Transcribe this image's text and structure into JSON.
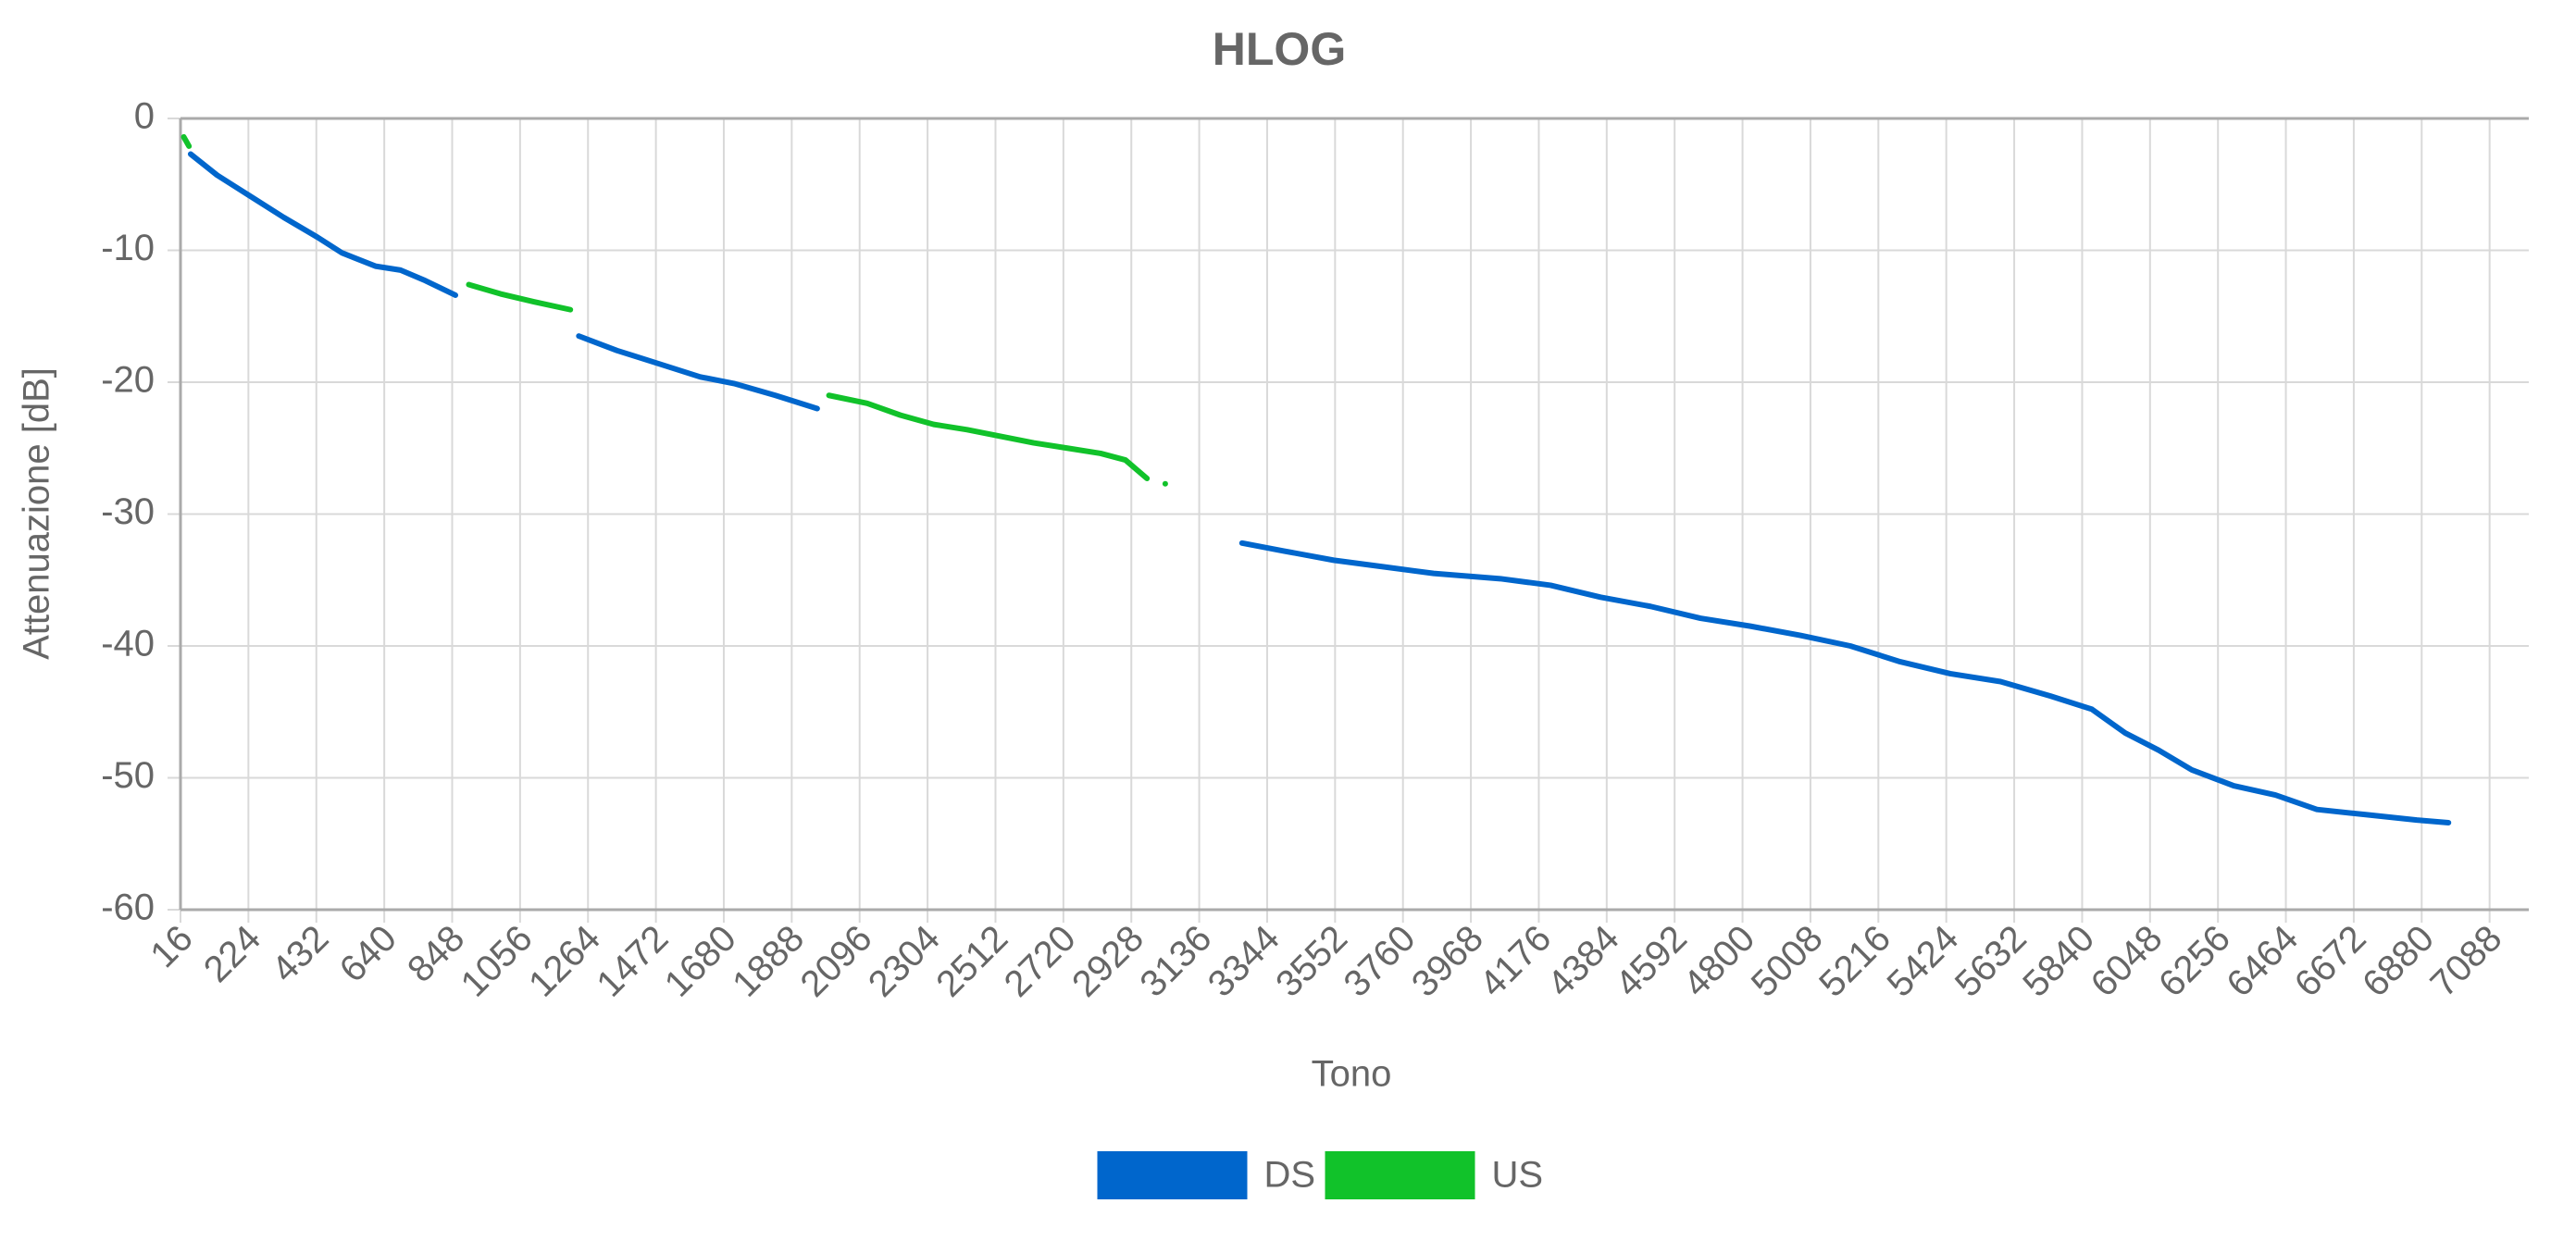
{
  "chart_data": {
    "type": "line",
    "title": "HLOG",
    "x_label": "Tono",
    "y_label": "Attenuazione [dB]",
    "xlim": [
      16,
      7208
    ],
    "ylim": [
      -60,
      0
    ],
    "xticks": [
      16,
      224,
      432,
      640,
      848,
      1056,
      1264,
      1472,
      1680,
      1888,
      2096,
      2304,
      2512,
      2720,
      2928,
      3136,
      3344,
      3552,
      3760,
      3968,
      4176,
      4384,
      4592,
      4800,
      5008,
      5216,
      5424,
      5632,
      5840,
      6048,
      6256,
      6464,
      6672,
      6880,
      7088
    ],
    "yticks": [
      -60,
      -50,
      -40,
      -30,
      -20,
      -10,
      0
    ],
    "grid": true,
    "legend": "bottom",
    "series": [
      {
        "name": "DS",
        "color": "#0066cc",
        "x": [
          47,
          128,
          230,
          332,
          435,
          511,
          613,
          690,
          766,
          858,
          null,
          1236,
          1353,
          1481,
          1608,
          1711,
          1838,
          1966,
          null,
          3267,
          3395,
          3548,
          3701,
          3854,
          4058,
          4212,
          4365,
          4518,
          4671,
          4824,
          4977,
          5130,
          5283,
          5436,
          5590,
          5743,
          5870,
          5972,
          6074,
          6176,
          6304,
          6432,
          6559,
          6712,
          6865,
          6962
        ],
        "values": [
          -2.7,
          -4.3,
          -5.9,
          -7.5,
          -9.0,
          -10.2,
          -11.2,
          -11.5,
          -12.3,
          -13.4,
          null,
          -16.5,
          -17.6,
          -18.6,
          -19.6,
          -20.1,
          -21.0,
          -22.0,
          null,
          -32.2,
          -32.8,
          -33.5,
          -34.0,
          -34.5,
          -34.9,
          -35.4,
          -36.3,
          -37.0,
          -37.9,
          -38.5,
          -39.2,
          -40.0,
          -41.2,
          -42.1,
          -42.7,
          -43.8,
          -44.8,
          -46.6,
          -47.9,
          -49.4,
          -50.6,
          -51.3,
          -52.4,
          -52.8,
          -53.2,
          -53.4
        ]
      },
      {
        "name": "US",
        "color": "#11c22a",
        "x": [
          26,
          42,
          null,
          899,
          996,
          1098,
          1210,
          null,
          2002,
          2119,
          2221,
          2323,
          2425,
          2527,
          2629,
          2732,
          2834,
          2910,
          2976,
          null,
          3032
        ],
        "values": [
          -1.4,
          -2.1,
          null,
          -12.6,
          -13.3,
          -13.9,
          -14.5,
          null,
          -21.0,
          -21.6,
          -22.5,
          -23.2,
          -23.6,
          -24.1,
          -24.6,
          -25.0,
          -25.4,
          -25.9,
          -27.3,
          null,
          -27.7
        ]
      }
    ]
  }
}
